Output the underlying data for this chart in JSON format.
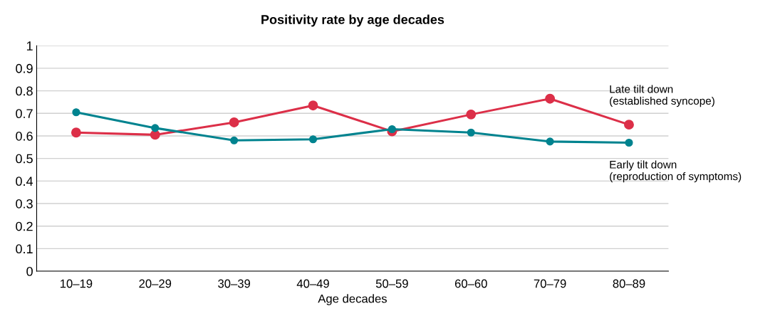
{
  "chart_data": {
    "type": "line",
    "title": "Positivity rate by age decades",
    "xlabel": "Age decades",
    "categories": [
      "10–19",
      "20–29",
      "30–39",
      "40–49",
      "50–59",
      "60–60",
      "70–79",
      "80–89"
    ],
    "series": [
      {
        "name": "Late tilt down\n(established syncope)",
        "color": "#dc2f48",
        "values": [
          0.615,
          0.605,
          0.66,
          0.735,
          0.62,
          0.695,
          0.765,
          0.65
        ]
      },
      {
        "name": "Early tilt down\n(reproduction of symptoms)",
        "color": "#00838f",
        "values": [
          0.705,
          0.635,
          0.58,
          0.585,
          0.63,
          0.615,
          0.575,
          0.57
        ]
      }
    ],
    "ylim": [
      0,
      1
    ],
    "yticks": [
      0,
      0.1,
      0.2,
      0.3,
      0.4,
      0.5,
      0.6,
      0.7,
      0.8,
      0.9,
      1
    ],
    "grid": "y",
    "legend": false,
    "marker": "circle",
    "line_style": "solid"
  }
}
